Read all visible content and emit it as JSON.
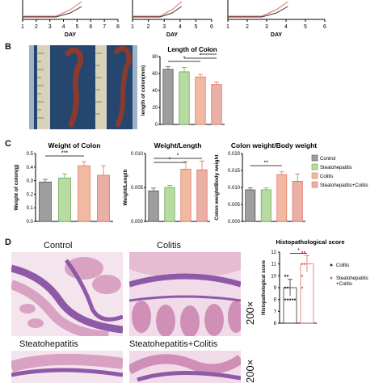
{
  "panel_a": {
    "xlabels": [
      "DAY",
      "DAY",
      "DAY"
    ],
    "ticks": [
      [
        "1",
        "2",
        "3",
        "4",
        "5",
        "6",
        "7",
        "8"
      ],
      [
        "1",
        "2",
        "3",
        "4",
        "5",
        "6"
      ],
      [
        "1",
        "2",
        "3",
        "4",
        "5",
        "6"
      ]
    ]
  },
  "panel_b": {
    "letter": "B"
  },
  "panel_c": {
    "letter": "C"
  },
  "panel_d": {
    "letter": "D",
    "images": [
      "Control",
      "Colitis",
      "Steatohepatitis",
      "Steatohepatitis+Colitis"
    ],
    "magnification": [
      "200×",
      "200×"
    ]
  },
  "colors": {
    "control": "#9e9e9e",
    "steatohepatitis": "#b7dba0",
    "colitis": "#f2b9a2",
    "both": "#e9b0a8",
    "sig": "#c62828",
    "he_pink": "#d9a2c2",
    "he_purple": "#8e5aa8"
  },
  "chart_data": [
    {
      "type": "bar",
      "title": "Length of Colon",
      "ylabel": "length of colon(mm)",
      "ylim": [
        0,
        80
      ],
      "yticks": [
        "0",
        "20",
        "40",
        "60",
        "80"
      ],
      "categories": [
        "Control",
        "Steatohepatitis",
        "Colitis",
        "Steatohepatitis+Colitis"
      ],
      "values": [
        65,
        62,
        56,
        47
      ],
      "errors": [
        3,
        5,
        3,
        3
      ],
      "significance": [
        "*",
        "*",
        "*"
      ]
    },
    {
      "type": "bar",
      "title": "Weight of Colon",
      "ylabel": "Weight of colon(g)",
      "ylim": [
        0,
        0.5
      ],
      "yticks": [
        "0.0",
        "0.1",
        "0.2",
        "0.3",
        "0.4",
        "0.5"
      ],
      "categories": [
        "Control",
        "Steatohepatitis",
        "Colitis",
        "Steatohepatitis+Colitis"
      ],
      "values": [
        0.29,
        0.32,
        0.41,
        0.34
      ],
      "errors": [
        0.02,
        0.03,
        0.03,
        0.07
      ],
      "significance": [
        "***"
      ]
    },
    {
      "type": "bar",
      "title": "Weight/Length",
      "ylabel": "Weight/Length",
      "ylim": [
        0,
        0.01
      ],
      "yticks": [
        "0.000",
        "0.005",
        "0.010"
      ],
      "categories": [
        "Control",
        "Steatohepatitis",
        "Colitis",
        "Steatohepatitis+Colitis"
      ],
      "values": [
        0.0045,
        0.005,
        0.0077,
        0.0076
      ],
      "errors": [
        0.0004,
        0.0003,
        0.0011,
        0.0013
      ],
      "significance": [
        "*",
        "*"
      ]
    },
    {
      "type": "bar",
      "title": "Colon weight/Body weight",
      "ylabel": "Colon weight/Body weight",
      "ylim": [
        0,
        0.02
      ],
      "yticks": [
        "0.000",
        "0.005",
        "0.010",
        "0.015",
        "0.020"
      ],
      "categories": [
        "Control",
        "Steatohepatitis",
        "Colitis",
        "Steatohepatitis+Colitis"
      ],
      "values": [
        0.0093,
        0.0093,
        0.0138,
        0.0118
      ],
      "errors": [
        0.0006,
        0.0006,
        0.0008,
        0.0022
      ],
      "significance": [
        "**"
      ],
      "legend": [
        "Control",
        "Steatohepatitis",
        "Colitis",
        "Steatohepatitis+Colitis"
      ]
    },
    {
      "type": "scatter",
      "title": "Histopathological score",
      "ylabel": "Histopathological score",
      "ylim": [
        6,
        12
      ],
      "yticks": [
        "6",
        "7",
        "8",
        "9",
        "10",
        "11",
        "12"
      ],
      "categories": [
        "Colitis",
        "Steatohepatitis+Colitis"
      ],
      "values": [
        9.0,
        11.0
      ],
      "errors": [
        0.7,
        0.7
      ],
      "points": [
        [
          8,
          8,
          8,
          8,
          8,
          9,
          9,
          10,
          10
        ],
        [
          9,
          10,
          11,
          11,
          12,
          12
        ]
      ],
      "significance": [
        "*"
      ],
      "legend": [
        "Colitis",
        "Steatohepatitis +Colitis"
      ]
    }
  ]
}
